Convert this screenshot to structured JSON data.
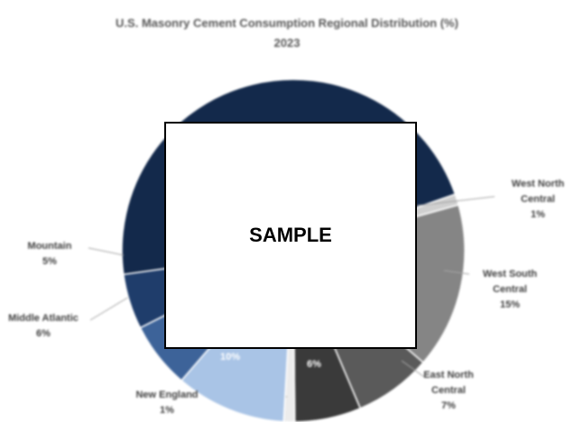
{
  "chart_data": {
    "type": "pie",
    "title": "U.S. Masonry Cement Consumption Regional Distribution (%)",
    "subtitle": "2023",
    "categories": [
      null,
      "West North Central",
      "West South Central",
      "East North Central",
      null,
      "New England",
      null,
      "Middle Atlantic",
      "Mountain"
    ],
    "values": [
      45,
      1,
      15,
      7,
      6,
      1,
      10,
      6,
      5
    ],
    "value_labels": [
      null,
      "1%",
      "15%",
      "7%",
      "6%",
      "1%",
      "10%",
      "6%",
      "5%"
    ],
    "colors": [
      "#13294b",
      "#cfcfcf",
      "#858585",
      "#5a5a5a",
      "#3a3a3a",
      "#ececec",
      "#a9c4e6",
      "#3d6399",
      "#1f3d6b"
    ]
  },
  "watermark": "SAMPLE"
}
